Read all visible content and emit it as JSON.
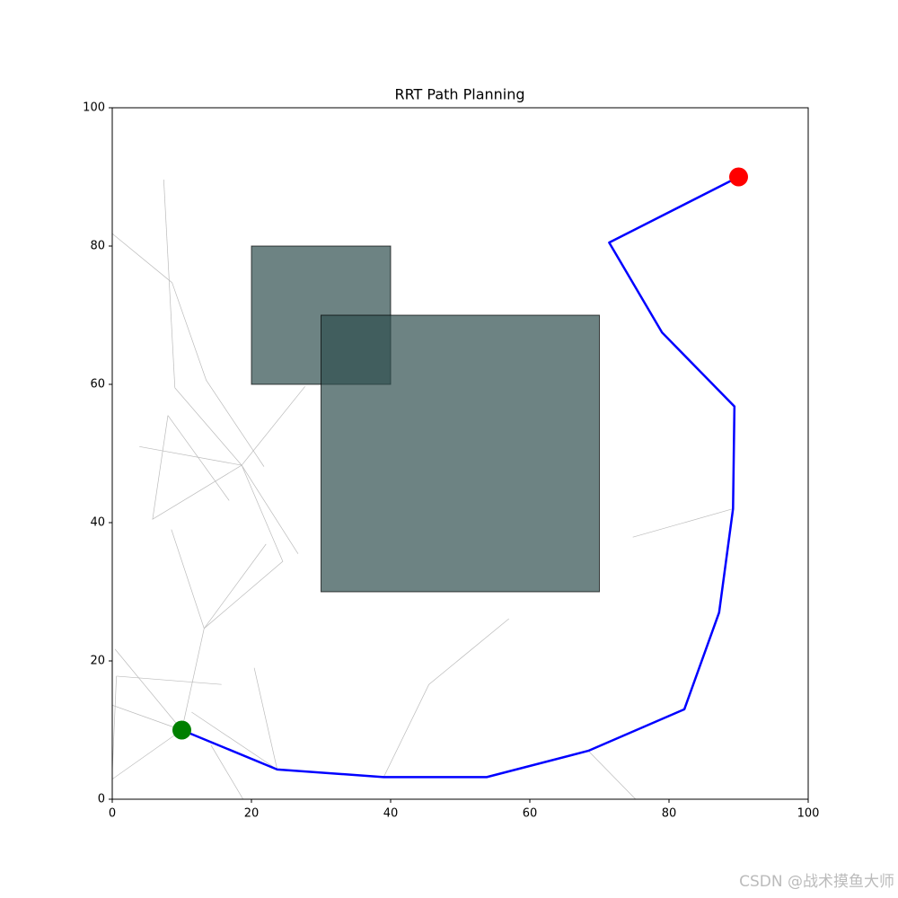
{
  "chart_data": {
    "type": "path-planning",
    "title": "RRT Path Planning",
    "xlim": [
      0,
      100
    ],
    "ylim": [
      0,
      100
    ],
    "xticks": [
      0,
      20,
      40,
      60,
      80,
      100
    ],
    "yticks": [
      0,
      20,
      40,
      60,
      80,
      100
    ],
    "obstacle_color": "#2f4f4f",
    "obstacles": [
      {
        "x": 20,
        "y": 60,
        "width": 20,
        "height": 20
      },
      {
        "x": 30,
        "y": 30,
        "width": 40,
        "height": 40
      }
    ],
    "tree": {
      "color": "#bbbbbb",
      "segments": [
        {
          "x": [
            0,
            8.6
          ],
          "y": [
            81.8,
            74.7
          ]
        },
        {
          "x": [
            7.4,
            9
          ],
          "y": [
            89.6,
            59.5
          ]
        },
        {
          "x": [
            8.6,
            13.5,
            21.8
          ],
          "y": [
            74.7,
            60.6,
            48.1
          ]
        },
        {
          "x": [
            9,
            18.6
          ],
          "y": [
            59.5,
            48.3
          ]
        },
        {
          "x": [
            18.6,
            27.7
          ],
          "y": [
            48.3,
            59.7
          ]
        },
        {
          "x": [
            3.9,
            18.6
          ],
          "y": [
            51.0,
            48.3
          ]
        },
        {
          "x": [
            8,
            5.8,
            18.6
          ],
          "y": [
            55.5,
            40.5,
            48.3
          ]
        },
        {
          "x": [
            8,
            16.8
          ],
          "y": [
            55.5,
            43.2
          ]
        },
        {
          "x": [
            18.6,
            24.5,
            13.2
          ],
          "y": [
            48.3,
            34.4,
            24.7
          ]
        },
        {
          "x": [
            18.6,
            26.7
          ],
          "y": [
            48.3,
            35.5
          ]
        },
        {
          "x": [
            8.5,
            13.2
          ],
          "y": [
            39.0,
            24.7
          ]
        },
        {
          "x": [
            13.2,
            22.1
          ],
          "y": [
            24.7,
            36.9
          ]
        },
        {
          "x": [
            13.2,
            10
          ],
          "y": [
            24.7,
            10
          ]
        },
        {
          "x": [
            0.4,
            10
          ],
          "y": [
            21.7,
            10
          ]
        },
        {
          "x": [
            0.6,
            15.7
          ],
          "y": [
            17.8,
            16.6
          ]
        },
        {
          "x": [
            0.6,
            0
          ],
          "y": [
            17.8,
            3.9
          ]
        },
        {
          "x": [
            0,
            10
          ],
          "y": [
            13.6,
            10
          ]
        },
        {
          "x": [
            0,
            10
          ],
          "y": [
            2.9,
            10
          ]
        },
        {
          "x": [
            11.4,
            23.7
          ],
          "y": [
            12.6,
            4.3
          ]
        },
        {
          "x": [
            20.4,
            23.7
          ],
          "y": [
            19.0,
            4.3
          ]
        },
        {
          "x": [
            14.2,
            18.8
          ],
          "y": [
            7.8,
            0
          ]
        },
        {
          "x": [
            39,
            45.5,
            57
          ],
          "y": [
            3.2,
            16.6,
            26.1
          ]
        },
        {
          "x": [
            68.4,
            75.2
          ],
          "y": [
            7.0,
            0
          ]
        },
        {
          "x": [
            74.8,
            89.2
          ],
          "y": [
            37.9,
            42.0
          ]
        }
      ]
    },
    "path": {
      "color": "#0000ff",
      "x": [
        10,
        23.7,
        39,
        53.8,
        68.4,
        82.2,
        87.2,
        89.2,
        89.4,
        79,
        71.4,
        90
      ],
      "y": [
        10,
        4.3,
        3.2,
        3.2,
        7.0,
        13.0,
        27.0,
        42.0,
        56.8,
        67.5,
        80.5,
        90
      ]
    },
    "start": {
      "x": 10,
      "y": 10,
      "color": "#008000"
    },
    "goal": {
      "x": 90,
      "y": 90,
      "color": "#ff0000"
    }
  },
  "watermark": "CSDN @战术摸鱼大师"
}
